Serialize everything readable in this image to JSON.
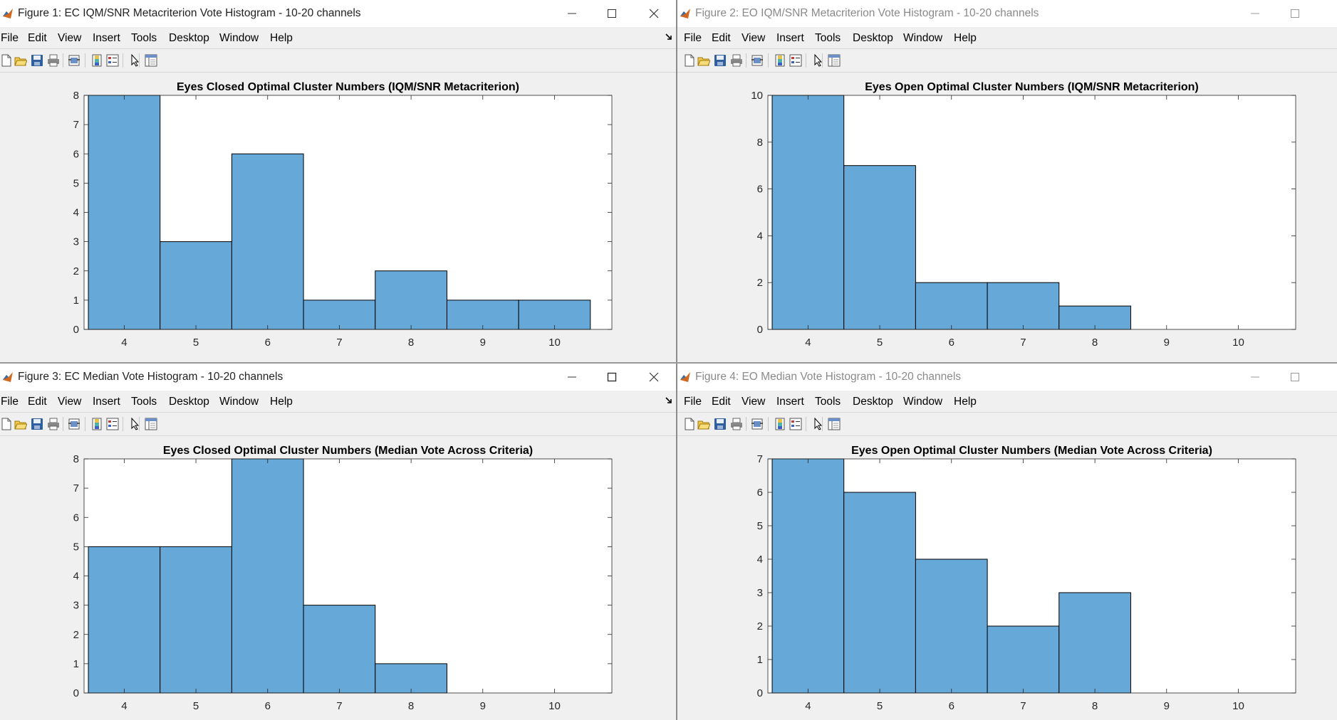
{
  "menu_labels": [
    "File",
    "Edit",
    "View",
    "Insert",
    "Tools",
    "Desktop",
    "Window",
    "Help"
  ],
  "colors": {
    "bar_fill": "#66a9d8",
    "bar_edge": "#000000",
    "active_title": "#222222",
    "inactive_title": "#8a8a8a"
  },
  "toolbar_icons": [
    "new-figure-icon",
    "open-icon",
    "save-icon",
    "print-icon",
    "link-plot-icon",
    "insert-colorbar-icon",
    "insert-legend-icon",
    "edit-plot-icon",
    "property-inspector-icon"
  ],
  "figures": [
    {
      "window_title": "Figure 1: EC IQM/SNR Metacriterion Vote Histogram - 10-20 channels",
      "active": true
    },
    {
      "window_title": "Figure 2: EO IQM/SNR Metacriterion Vote Histogram - 10-20 channels",
      "active": false
    },
    {
      "window_title": "Figure 3: EC Median Vote Histogram - 10-20 channels",
      "active": true
    },
    {
      "window_title": "Figure 4: EO Median Vote Histogram - 10-20 channels",
      "active": false
    }
  ],
  "chart_data": [
    {
      "type": "bar",
      "title": "Eyes Closed Optimal Cluster Numbers (IQM/SNR Metacriterion)",
      "categories": [
        "4",
        "5",
        "6",
        "7",
        "8",
        "9",
        "10"
      ],
      "values": [
        8,
        3,
        6,
        1,
        2,
        1,
        1
      ],
      "ylim": [
        0,
        8
      ],
      "yticks": [
        "0",
        "1",
        "2",
        "3",
        "4",
        "5",
        "6",
        "7",
        "8"
      ],
      "grid": false,
      "legend": "none"
    },
    {
      "type": "bar",
      "title": "Eyes Open Optimal Cluster Numbers (IQM/SNR Metacriterion)",
      "categories": [
        "4",
        "5",
        "6",
        "7",
        "8",
        "9",
        "10"
      ],
      "values": [
        10,
        7,
        2,
        2,
        1,
        0,
        0
      ],
      "ylim": [
        0,
        10
      ],
      "yticks": [
        "0",
        "2",
        "4",
        "6",
        "8",
        "10"
      ],
      "grid": false,
      "legend": "none"
    },
    {
      "type": "bar",
      "title": "Eyes Closed Optimal Cluster Numbers (Median Vote Across Criteria)",
      "categories": [
        "4",
        "5",
        "6",
        "7",
        "8",
        "9",
        "10"
      ],
      "values": [
        5,
        5,
        8,
        3,
        1,
        0,
        0
      ],
      "ylim": [
        0,
        8
      ],
      "yticks": [
        "0",
        "1",
        "2",
        "3",
        "4",
        "5",
        "6",
        "7",
        "8"
      ],
      "grid": false,
      "legend": "none"
    },
    {
      "type": "bar",
      "title": "Eyes Open Optimal Cluster Numbers (Median Vote Across Criteria)",
      "categories": [
        "4",
        "5",
        "6",
        "7",
        "8",
        "9",
        "10"
      ],
      "values": [
        7,
        6,
        4,
        2,
        3,
        0,
        0
      ],
      "ylim": [
        0,
        7
      ],
      "yticks": [
        "0",
        "1",
        "2",
        "3",
        "4",
        "5",
        "6",
        "7"
      ],
      "grid": false,
      "legend": "none"
    }
  ]
}
